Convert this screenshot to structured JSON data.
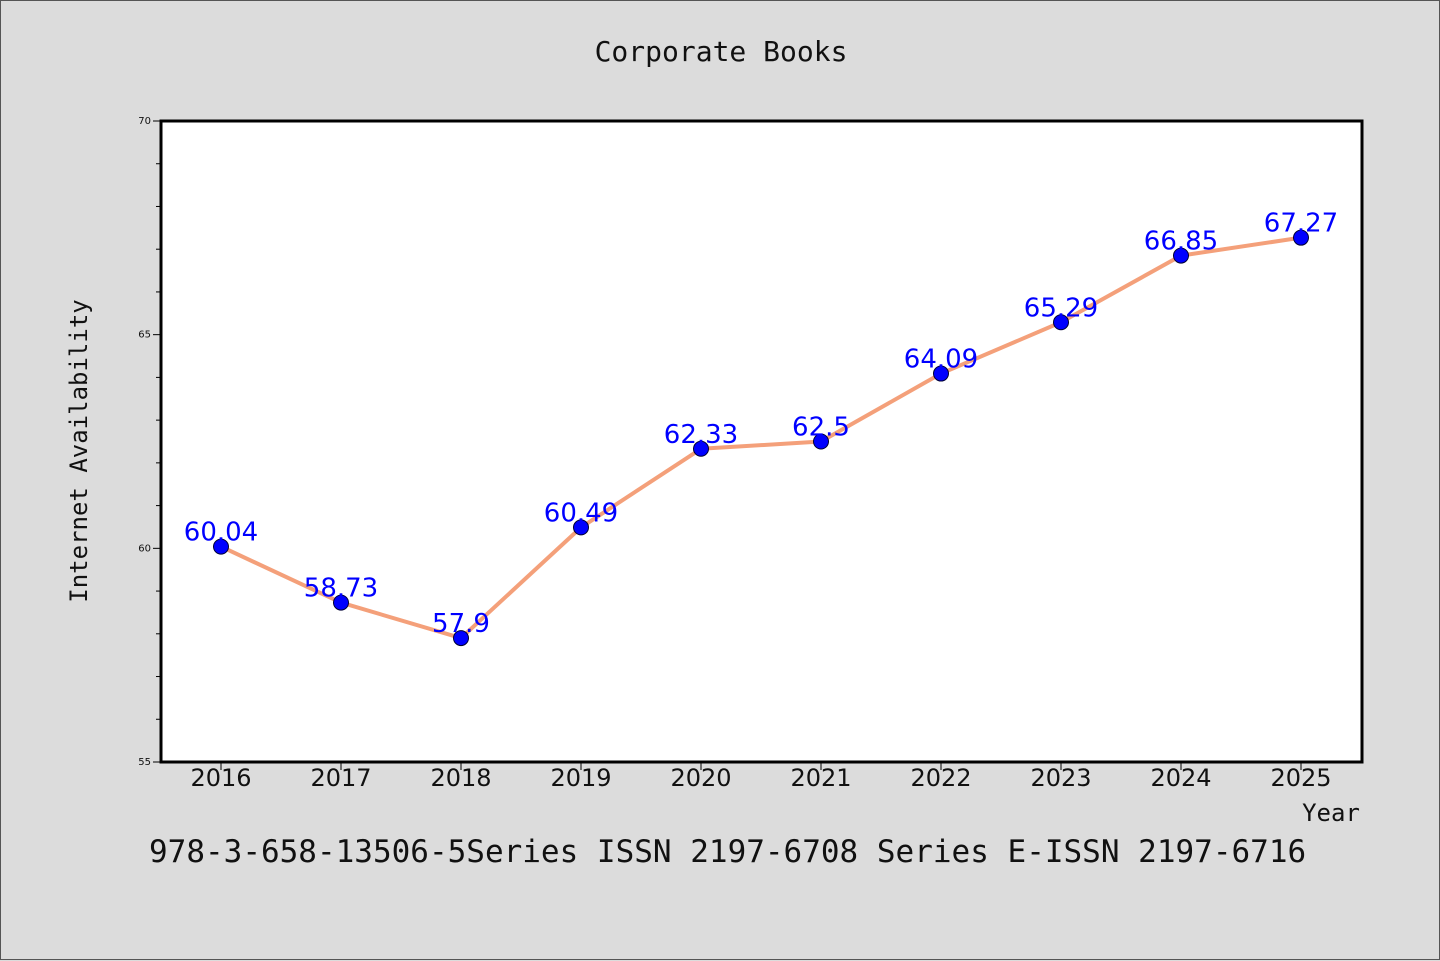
{
  "chart_data": {
    "type": "line",
    "title": "Corporate Books",
    "xlabel": "Year",
    "ylabel": "Internet Availability",
    "categories": [
      "2016",
      "2017",
      "2018",
      "2019",
      "2020",
      "2021",
      "2022",
      "2023",
      "2024",
      "2025"
    ],
    "series": [
      {
        "values": [
          60.04,
          58.73,
          57.9,
          60.49,
          62.33,
          62.5,
          64.09,
          65.29,
          66.85,
          67.27
        ],
        "labels": [
          "60.04",
          "58.73",
          "57.9",
          "60.49",
          "62.33",
          "62.5",
          "64.09",
          "65.29",
          "66.85",
          "67.27"
        ],
        "line_color": "#f4a07a",
        "marker_color": "#0000ff"
      }
    ],
    "ylim": [
      55,
      70
    ],
    "yticks": [
      "55",
      "60",
      "65",
      "70"
    ],
    "grid": false,
    "legend": "none"
  },
  "footer": {
    "text": "978-3-658-13506-5Series ISSN 2197-6708 Series E-ISSN 2197-6716"
  }
}
